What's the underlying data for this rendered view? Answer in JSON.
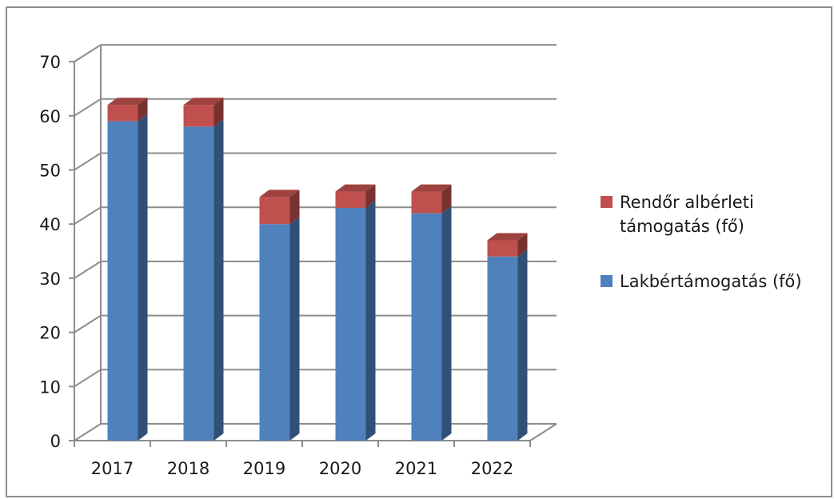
{
  "chart_data": {
    "type": "bar",
    "stacked": true,
    "three_d": true,
    "categories": [
      "2017",
      "2018",
      "2019",
      "2020",
      "2021",
      "2022"
    ],
    "series": [
      {
        "name": "Lakbértámogatás (fő)",
        "values": [
          59,
          58,
          40,
          43,
          42,
          34
        ],
        "color": "#4f81bd"
      },
      {
        "name": "Rendőr albérleti támogatás (fő)",
        "values": [
          3,
          4,
          5,
          3,
          4,
          3
        ],
        "color": "#c0504d"
      }
    ],
    "title": "",
    "xlabel": "",
    "ylabel": "",
    "ylim": [
      0,
      70
    ],
    "yticks": [
      0,
      10,
      20,
      30,
      40,
      50,
      60,
      70
    ],
    "grid": true,
    "legend_position": "right"
  },
  "legend": {
    "items": [
      {
        "lines": [
          "Rendőr albérleti",
          "támogatás (fő)"
        ],
        "color": "#c0504d"
      },
      {
        "lines": [
          "Lakbértámogatás (fő)"
        ],
        "color": "#4f81bd"
      }
    ]
  }
}
